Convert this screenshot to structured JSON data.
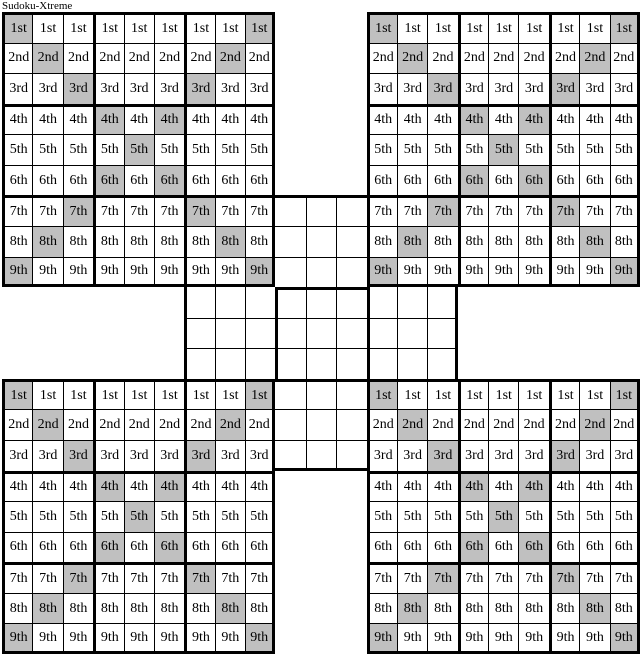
{
  "title": "Sudoku-Xtreme",
  "colors": {
    "page_background": "#ffffff",
    "cell_background": "#ffffff",
    "shaded_cell": "#c0c0c0",
    "grid_lines": "#000000",
    "text": "#000000"
  },
  "puzzle": {
    "description": "Five overlapping 9x9 grids: four corner grids with ordinal row labels and X-diagonal shading, one center grid shown as empty cells in its non-overlapping cross region",
    "rows": [
      {
        "label": "1st",
        "shaded_cols": [
          1,
          9
        ]
      },
      {
        "label": "2nd",
        "shaded_cols": [
          2,
          8
        ]
      },
      {
        "label": "3rd",
        "shaded_cols": [
          3,
          7
        ]
      },
      {
        "label": "4th",
        "shaded_cols": [
          4,
          6
        ]
      },
      {
        "label": "5th",
        "shaded_cols": [
          5
        ]
      },
      {
        "label": "6th",
        "shaded_cols": [
          4,
          6
        ]
      },
      {
        "label": "7th",
        "shaded_cols": [
          3,
          7
        ]
      },
      {
        "label": "8th",
        "shaded_cols": [
          2,
          8
        ]
      },
      {
        "label": "9th",
        "shaded_cols": [
          1,
          9
        ]
      }
    ],
    "corner_grids": [
      {
        "id": "top-left"
      },
      {
        "id": "top-right"
      },
      {
        "id": "bottom-left"
      },
      {
        "id": "bottom-right"
      }
    ],
    "center_grid": {
      "id": "center",
      "empty_cell_text": "",
      "visible_boxes": [
        "top-middle",
        "middle-left",
        "middle-center",
        "middle-right",
        "bottom-middle"
      ]
    }
  }
}
